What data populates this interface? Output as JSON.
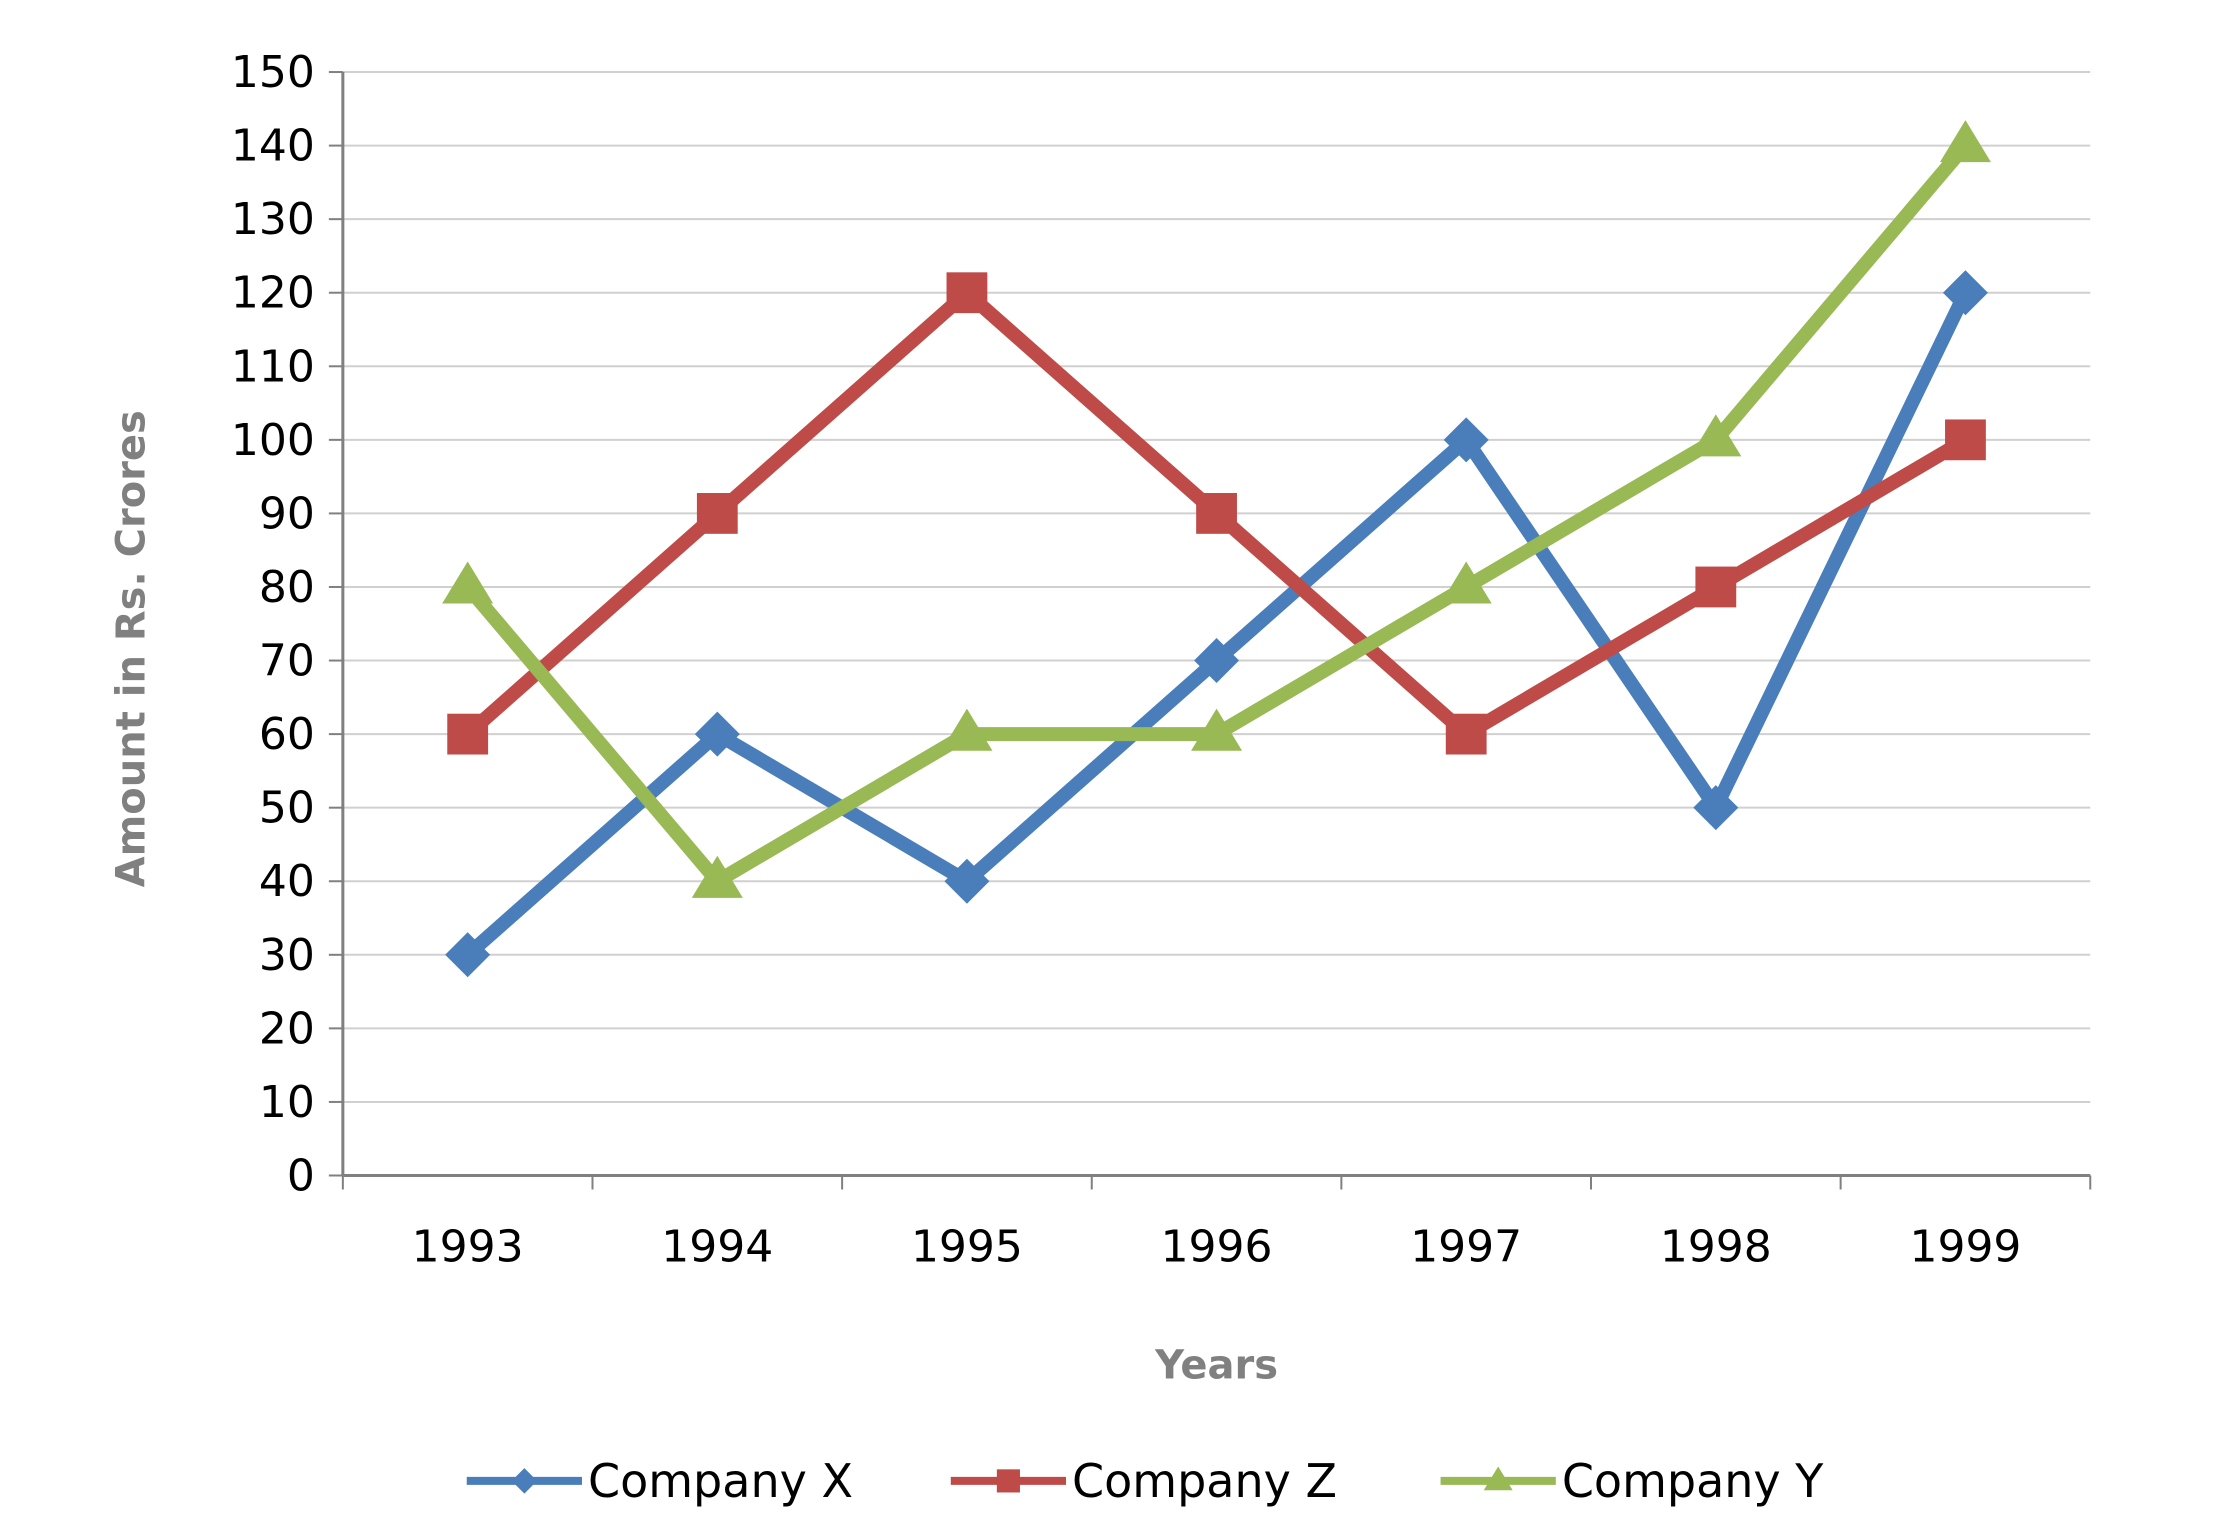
{
  "chart_data": {
    "type": "line",
    "title": "",
    "xlabel": "Years",
    "ylabel": "Amount in Rs. Crores",
    "categories": [
      "1993",
      "1994",
      "1995",
      "1996",
      "1997",
      "1998",
      "1999"
    ],
    "ylim": [
      0,
      150
    ],
    "yticks": [
      0,
      10,
      20,
      30,
      40,
      50,
      60,
      70,
      80,
      90,
      100,
      110,
      120,
      130,
      140,
      150
    ],
    "grid": true,
    "legend_position": "bottom",
    "series": [
      {
        "name": "Company X",
        "values": [
          30,
          60,
          40,
          70,
          100,
          50,
          120
        ],
        "color": "#4a7ebb",
        "marker": "diamond"
      },
      {
        "name": "Company Z",
        "values": [
          60,
          90,
          120,
          90,
          60,
          80,
          100
        ],
        "color": "#be4b48",
        "marker": "square"
      },
      {
        "name": "Company Y",
        "values": [
          80,
          40,
          60,
          60,
          80,
          100,
          140
        ],
        "color": "#98b954",
        "marker": "triangle"
      }
    ]
  }
}
